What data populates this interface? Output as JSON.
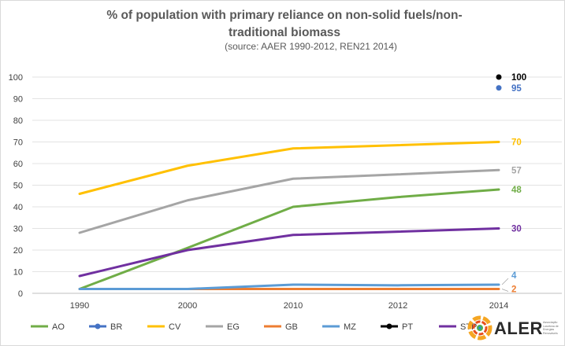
{
  "chart_data": {
    "type": "line",
    "title": "% of population with primary reliance on non-solid fuels/non-traditional biomass",
    "subtitle": "(source: AAER 1990-2012,  REN21 2014)",
    "categories": [
      "1990",
      "2000",
      "2010",
      "2012",
      "2014"
    ],
    "ylim": [
      0,
      100
    ],
    "yticks": [
      0,
      10,
      20,
      30,
      40,
      50,
      60,
      70,
      80,
      90,
      100
    ],
    "grid": true,
    "legend_position": "bottom",
    "series": [
      {
        "name": "AO",
        "color": "#70ad47",
        "values": [
          2,
          21,
          40,
          44.5,
          48
        ],
        "end_label": "48"
      },
      {
        "name": "BR",
        "color": "#4472c4",
        "values": [
          null,
          null,
          null,
          null,
          95
        ],
        "end_label": "95"
      },
      {
        "name": "CV",
        "color": "#ffc000",
        "values": [
          46,
          59,
          67,
          68.5,
          70
        ],
        "end_label": "70"
      },
      {
        "name": "EG",
        "color": "#a5a5a5",
        "values": [
          28,
          43,
          53,
          55,
          57
        ],
        "end_label": "57"
      },
      {
        "name": "GB",
        "color": "#ed7d31",
        "values": [
          2,
          2,
          2,
          2,
          2
        ],
        "end_label": "2"
      },
      {
        "name": "MZ",
        "color": "#5b9bd5",
        "values": [
          2,
          2,
          4,
          3.7,
          4
        ],
        "end_label": "4"
      },
      {
        "name": "PT",
        "color": "#000000",
        "values": [
          null,
          null,
          null,
          null,
          100
        ],
        "end_label": "100"
      },
      {
        "name": "STP",
        "color": "#7030a0",
        "values": [
          8,
          20,
          27,
          28.5,
          30
        ],
        "end_label": "30"
      }
    ]
  },
  "logo": {
    "name": "ALER",
    "tagline": "Associação Lusófona de Energias Renováveis"
  }
}
